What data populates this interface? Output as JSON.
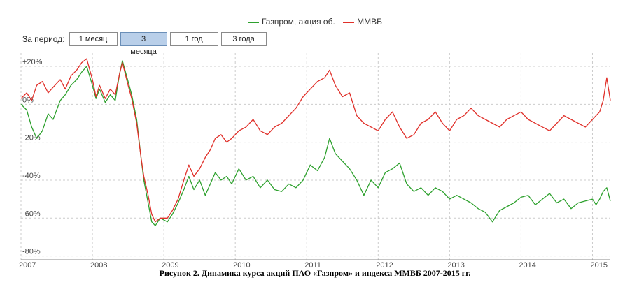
{
  "legend": {
    "gazprom_label": "Газпром, акция об.",
    "micex_label": "ММВБ"
  },
  "period": {
    "label": "За период:",
    "buttons": [
      "1 месяц",
      "3 месяца",
      "1 год",
      "3 года"
    ],
    "active": "3 месяца"
  },
  "caption": "Рисунок 2. Динамика курса акций ПАО «Газпром» и индекса ММВБ 2007-2015 гг.",
  "colors": {
    "gazprom": "#2ea12e",
    "micex": "#e0302a",
    "grid": "#cccccc",
    "axis_text": "#444444"
  },
  "chart_data": {
    "type": "line",
    "title": "",
    "xlabel": "",
    "ylabel": "",
    "xlim": [
      2007.0,
      2015.25
    ],
    "ylim": [
      -82,
      27
    ],
    "x_ticks": [
      2007,
      2008,
      2009,
      2010,
      2011,
      2012,
      2013,
      2014,
      2015
    ],
    "x_tick_labels": [
      "2007",
      "2008",
      "2009",
      "2010",
      "2011",
      "2012",
      "2013",
      "2014",
      "2015"
    ],
    "y_ticks": [
      20,
      0,
      -20,
      -40,
      -60,
      -80
    ],
    "y_tick_labels": [
      "+20%",
      "0%",
      "-20%",
      "-40%",
      "-60%",
      "-80%"
    ],
    "grid": true,
    "legend_position": "top-center",
    "series": [
      {
        "name": "Газпром, акция об.",
        "color": "#2ea12e",
        "x": [
          2007.0,
          2007.08,
          2007.15,
          2007.22,
          2007.3,
          2007.38,
          2007.45,
          2007.55,
          2007.62,
          2007.7,
          2007.78,
          2007.85,
          2007.92,
          2008.0,
          2008.05,
          2008.1,
          2008.18,
          2008.25,
          2008.32,
          2008.38,
          2008.42,
          2008.5,
          2008.55,
          2008.62,
          2008.68,
          2008.72,
          2008.78,
          2008.83,
          2008.88,
          2008.95,
          2009.05,
          2009.12,
          2009.2,
          2009.28,
          2009.35,
          2009.42,
          2009.5,
          2009.58,
          2009.65,
          2009.72,
          2009.8,
          2009.88,
          2009.95,
          2010.05,
          2010.15,
          2010.25,
          2010.35,
          2010.45,
          2010.55,
          2010.65,
          2010.75,
          2010.85,
          2010.95,
          2011.05,
          2011.15,
          2011.25,
          2011.32,
          2011.4,
          2011.5,
          2011.6,
          2011.7,
          2011.8,
          2011.9,
          2012.0,
          2012.1,
          2012.2,
          2012.3,
          2012.4,
          2012.5,
          2012.6,
          2012.7,
          2012.8,
          2012.9,
          2013.0,
          2013.1,
          2013.2,
          2013.3,
          2013.4,
          2013.5,
          2013.6,
          2013.7,
          2013.8,
          2013.9,
          2014.0,
          2014.1,
          2014.2,
          2014.3,
          2014.4,
          2014.5,
          2014.6,
          2014.7,
          2014.8,
          2014.9,
          2015.0,
          2015.05,
          2015.1,
          2015.15,
          2015.2,
          2015.25
        ],
        "values": [
          0,
          -3,
          -12,
          -18,
          -14,
          -5,
          -8,
          2,
          5,
          10,
          13,
          17,
          20,
          10,
          3,
          8,
          1,
          5,
          2,
          16,
          23,
          12,
          5,
          -8,
          -28,
          -40,
          -52,
          -62,
          -64,
          -60,
          -62,
          -58,
          -52,
          -45,
          -38,
          -45,
          -40,
          -48,
          -42,
          -36,
          -40,
          -38,
          -42,
          -34,
          -40,
          -38,
          -44,
          -40,
          -45,
          -46,
          -42,
          -44,
          -40,
          -32,
          -35,
          -28,
          -18,
          -26,
          -30,
          -34,
          -40,
          -48,
          -40,
          -44,
          -36,
          -34,
          -31,
          -42,
          -46,
          -44,
          -48,
          -44,
          -46,
          -50,
          -48,
          -50,
          -52,
          -55,
          -57,
          -62,
          -56,
          -54,
          -52,
          -49,
          -48,
          -53,
          -50,
          -47,
          -52,
          -50,
          -55,
          -52,
          -51,
          -50,
          -53,
          -50,
          -46,
          -44,
          -51
        ],
        "_note": ""
      },
      {
        "name": "ММВБ",
        "color": "#e0302a",
        "x": [
          2007.0,
          2007.08,
          2007.15,
          2007.22,
          2007.3,
          2007.38,
          2007.45,
          2007.55,
          2007.62,
          2007.7,
          2007.78,
          2007.85,
          2007.92,
          2008.0,
          2008.05,
          2008.1,
          2008.18,
          2008.25,
          2008.32,
          2008.38,
          2008.42,
          2008.5,
          2008.55,
          2008.62,
          2008.68,
          2008.72,
          2008.78,
          2008.83,
          2008.88,
          2008.95,
          2009.05,
          2009.12,
          2009.2,
          2009.28,
          2009.35,
          2009.42,
          2009.5,
          2009.58,
          2009.65,
          2009.72,
          2009.8,
          2009.88,
          2009.95,
          2010.05,
          2010.15,
          2010.25,
          2010.35,
          2010.45,
          2010.55,
          2010.65,
          2010.75,
          2010.85,
          2010.95,
          2011.05,
          2011.15,
          2011.25,
          2011.32,
          2011.4,
          2011.5,
          2011.6,
          2011.7,
          2011.8,
          2011.9,
          2012.0,
          2012.1,
          2012.2,
          2012.3,
          2012.4,
          2012.5,
          2012.6,
          2012.7,
          2012.8,
          2012.9,
          2013.0,
          2013.1,
          2013.2,
          2013.3,
          2013.4,
          2013.5,
          2013.6,
          2013.7,
          2013.8,
          2013.9,
          2014.0,
          2014.1,
          2014.2,
          2014.3,
          2014.4,
          2014.5,
          2014.6,
          2014.7,
          2014.8,
          2014.9,
          2015.0,
          2015.05,
          2015.1,
          2015.15,
          2015.2,
          2015.25
        ],
        "values": [
          3,
          6,
          2,
          10,
          12,
          6,
          9,
          13,
          8,
          15,
          18,
          22,
          24,
          13,
          4,
          10,
          3,
          8,
          5,
          16,
          22,
          10,
          3,
          -10,
          -28,
          -38,
          -48,
          -58,
          -62,
          -60,
          -60,
          -56,
          -50,
          -40,
          -32,
          -38,
          -34,
          -28,
          -24,
          -18,
          -16,
          -20,
          -18,
          -14,
          -12,
          -8,
          -14,
          -16,
          -12,
          -10,
          -6,
          -2,
          4,
          8,
          12,
          14,
          18,
          10,
          4,
          6,
          -6,
          -10,
          -12,
          -14,
          -8,
          -4,
          -12,
          -18,
          -16,
          -10,
          -8,
          -4,
          -10,
          -14,
          -8,
          -6,
          -2,
          -6,
          -8,
          -10,
          -12,
          -8,
          -6,
          -4,
          -8,
          -10,
          -12,
          -14,
          -10,
          -6,
          -8,
          -10,
          -12,
          -8,
          -6,
          -4,
          2,
          14,
          2
        ],
        "_note2": ""
      }
    ]
  }
}
